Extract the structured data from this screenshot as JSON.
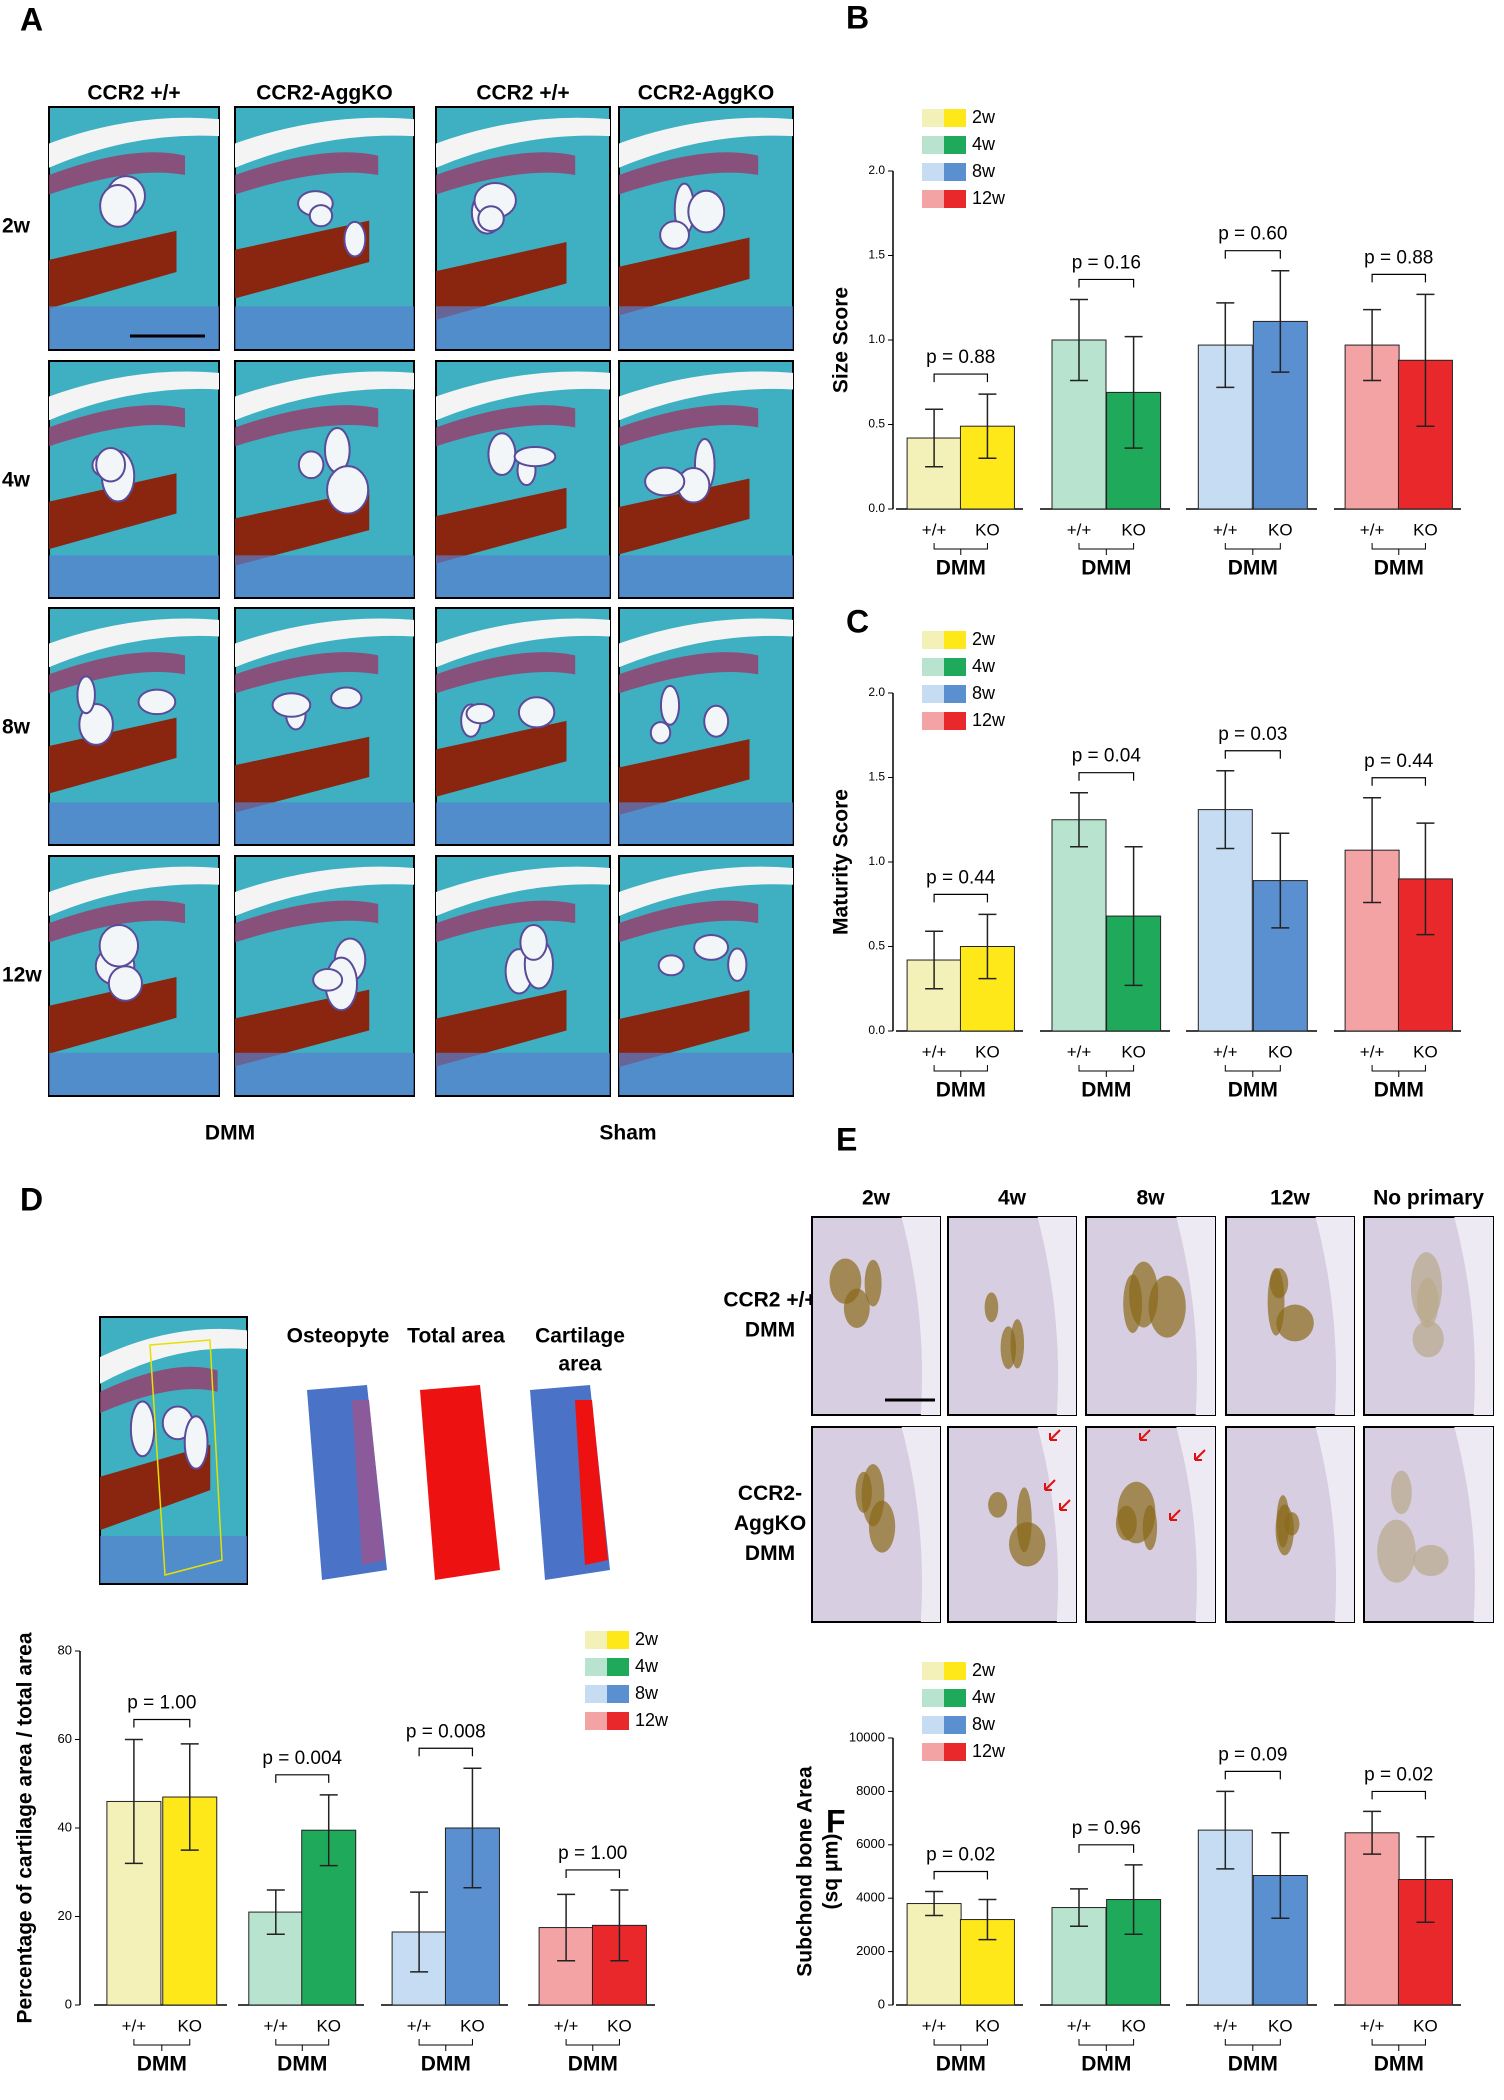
{
  "panel_labels": [
    "A",
    "B",
    "C",
    "D",
    "E",
    "F"
  ],
  "panel_a": {
    "columns": [
      "CCR2 +/+",
      "CCR2-AggKO",
      "CCR2 +/+",
      "CCR2-AggKO"
    ],
    "rows": [
      "2w",
      "4w",
      "8w",
      "12w"
    ],
    "groups": [
      "DMM",
      "Sham"
    ]
  },
  "panel_d": {
    "image_labels": [
      [
        "Osteopyte"
      ],
      [
        "Total area"
      ],
      [
        "Cartilage",
        "area"
      ]
    ]
  },
  "panel_e": {
    "columns": [
      "2w",
      "4w",
      "8w",
      "12w",
      "No primary"
    ],
    "rows": [
      [
        "CCR2 +/+",
        "DMM"
      ],
      [
        "CCR2-",
        "AggKO",
        "DMM"
      ]
    ]
  },
  "chart_data": [
    {
      "type": "bar",
      "ylabel": [
        "Size Score"
      ],
      "ylim": [
        0,
        2
      ],
      "yticks": [
        {
          "value": 0,
          "label": "0.0"
        },
        {
          "value": 0.5,
          "label": "0.5"
        },
        {
          "value": 1,
          "label": "1.0"
        },
        {
          "value": 1.5,
          "label": "1.5"
        },
        {
          "value": 2,
          "label": "2.0"
        }
      ],
      "categories": [
        "+/+",
        "KO",
        "+/+",
        "KO",
        "+/+",
        "KO",
        "+/+",
        "KO"
      ],
      "groups": [
        "DMM",
        "DMM",
        "DMM",
        "DMM"
      ],
      "values": [
        0.42,
        0.49,
        1.0,
        0.69,
        0.97,
        1.11,
        0.97,
        0.88
      ],
      "errors": [
        0.17,
        0.19,
        0.24,
        0.33,
        0.25,
        0.3,
        0.21,
        0.39
      ],
      "colors": [
        "#f4f1b8",
        "#ffe81a",
        "#b7e3cf",
        "#1faa5b",
        "#c5dcf2",
        "#5a8fd0",
        "#f3a3a3",
        "#e8282b"
      ],
      "annotations": [
        "p = 0.88",
        "p = 0.16",
        "p = 0.60",
        "p = 0.88"
      ],
      "legend_names": [
        "2w",
        "4w",
        "8w",
        "12w"
      ],
      "legend_colors": [
        [
          "#f4f1b8",
          "#ffe81a"
        ],
        [
          "#b7e3cf",
          "#1faa5b"
        ],
        [
          "#c5dcf2",
          "#5a8fd0"
        ],
        [
          "#f3a3a3",
          "#e8282b"
        ]
      ]
    },
    {
      "type": "bar",
      "ylabel": [
        "Maturity Score"
      ],
      "ylim": [
        0,
        2
      ],
      "yticks": [
        {
          "value": 0,
          "label": "0.0"
        },
        {
          "value": 0.5,
          "label": "0.5"
        },
        {
          "value": 1,
          "label": "1.0"
        },
        {
          "value": 1.5,
          "label": "1.5"
        },
        {
          "value": 2,
          "label": "2.0"
        }
      ],
      "categories": [
        "+/+",
        "KO",
        "+/+",
        "KO",
        "+/+",
        "KO",
        "+/+",
        "KO"
      ],
      "groups": [
        "DMM",
        "DMM",
        "DMM",
        "DMM"
      ],
      "values": [
        0.42,
        0.5,
        1.25,
        0.68,
        1.31,
        0.89,
        1.07,
        0.9
      ],
      "errors": [
        0.17,
        0.19,
        0.16,
        0.41,
        0.23,
        0.28,
        0.31,
        0.33
      ],
      "colors": [
        "#f4f1b8",
        "#ffe81a",
        "#b7e3cf",
        "#1faa5b",
        "#c5dcf2",
        "#5a8fd0",
        "#f3a3a3",
        "#e8282b"
      ],
      "annotations": [
        "p = 0.44",
        "p = 0.04",
        "p = 0.03",
        "p = 0.44"
      ],
      "legend_names": [
        "2w",
        "4w",
        "8w",
        "12w"
      ],
      "legend_colors": [
        [
          "#f4f1b8",
          "#ffe81a"
        ],
        [
          "#b7e3cf",
          "#1faa5b"
        ],
        [
          "#c5dcf2",
          "#5a8fd0"
        ],
        [
          "#f3a3a3",
          "#e8282b"
        ]
      ]
    },
    {
      "type": "bar",
      "ylabel": [
        "Percentage of cartilage area / total area"
      ],
      "ylim": [
        0,
        80
      ],
      "yticks": [
        0,
        20,
        40,
        60,
        80
      ],
      "categories": [
        "+/+",
        "KO",
        "+/+",
        "KO",
        "+/+",
        "KO",
        "+/+",
        "KO"
      ],
      "groups": [
        "DMM",
        "DMM",
        "DMM",
        "DMM"
      ],
      "values": [
        46,
        47,
        21,
        39.5,
        16.5,
        40,
        17.5,
        18
      ],
      "errors": [
        14,
        12,
        5,
        8,
        9,
        13.5,
        7.5,
        8
      ],
      "colors": [
        "#f4f1b8",
        "#ffe81a",
        "#b7e3cf",
        "#1faa5b",
        "#c5dcf2",
        "#5a8fd0",
        "#f3a3a3",
        "#e8282b"
      ],
      "annotations": [
        "p = 1.00",
        "p = 0.004",
        "p = 0.008",
        "p = 1.00"
      ],
      "legend_names": [
        "2w",
        "4w",
        "8w",
        "12w"
      ],
      "legend_colors": [
        [
          "#f4f1b8",
          "#ffe81a"
        ],
        [
          "#b7e3cf",
          "#1faa5b"
        ],
        [
          "#c5dcf2",
          "#5a8fd0"
        ],
        [
          "#f3a3a3",
          "#e8282b"
        ]
      ]
    },
    {
      "type": "bar",
      "ylabel": [
        "Subchond bone  Area",
        "(sq μm)"
      ],
      "ylim": [
        0,
        10000
      ],
      "yticks": [
        0,
        2000,
        4000,
        6000,
        8000,
        10000
      ],
      "categories": [
        "+/+",
        "KO",
        "+/+",
        "KO",
        "+/+",
        "KO",
        "+/+",
        "KO"
      ],
      "groups": [
        "DMM",
        "DMM",
        "DMM",
        "DMM"
      ],
      "values": [
        3800,
        3200,
        3650,
        3950,
        6550,
        4850,
        6450,
        4700
      ],
      "errors": [
        450,
        750,
        700,
        1300,
        1450,
        1600,
        800,
        1600
      ],
      "colors": [
        "#f4f1b8",
        "#ffe81a",
        "#b7e3cf",
        "#1faa5b",
        "#c5dcf2",
        "#5a8fd0",
        "#f3a3a3",
        "#e8282b"
      ],
      "annotations": [
        "p = 0.02",
        "p = 0.96",
        "p = 0.09",
        "p = 0.02"
      ],
      "legend_names": [
        "2w",
        "4w",
        "8w",
        "12w"
      ],
      "legend_colors": [
        [
          "#f4f1b8",
          "#ffe81a"
        ],
        [
          "#b7e3cf",
          "#1faa5b"
        ],
        [
          "#c5dcf2",
          "#5a8fd0"
        ],
        [
          "#f3a3a3",
          "#e8282b"
        ]
      ]
    }
  ]
}
